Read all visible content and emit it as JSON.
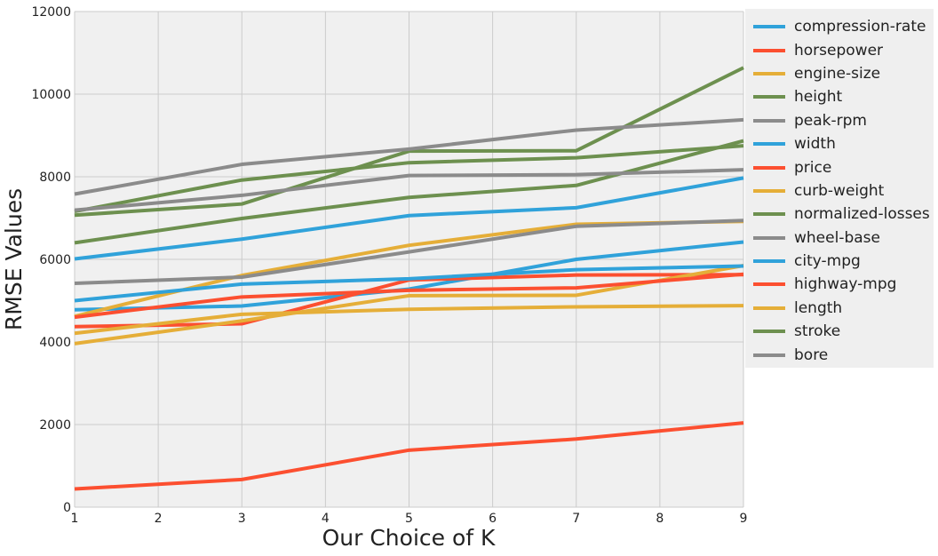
{
  "chart_data": {
    "type": "line",
    "xlabel": "Our Choice of K",
    "ylabel": "RMSE Values",
    "xlim": [
      1,
      9
    ],
    "ylim": [
      0,
      12000
    ],
    "xticks": [
      1,
      2,
      3,
      4,
      5,
      6,
      7,
      8,
      9
    ],
    "yticks": [
      0,
      2000,
      4000,
      6000,
      8000,
      10000,
      12000
    ],
    "x": [
      1,
      3,
      5,
      7,
      9
    ],
    "grid": true,
    "legend_position": "right, outside plot",
    "colors": {
      "blue": "#30a2da",
      "red": "#fc4f30",
      "yellow": "#e5ae38",
      "green": "#6d904f",
      "gray": "#8b8b8b"
    },
    "series": [
      {
        "name": "compression-rate",
        "color": "#30a2da",
        "values": [
          4780,
          4870,
          5280,
          6000,
          6420
        ]
      },
      {
        "name": "horsepower",
        "color": "#fc4f30",
        "values": [
          4370,
          4440,
          5500,
          5620,
          5630
        ]
      },
      {
        "name": "engine-size",
        "color": "#e5ae38",
        "values": [
          3960,
          4510,
          5120,
          5130,
          5850
        ]
      },
      {
        "name": "height",
        "color": "#6d904f",
        "values": [
          7070,
          7340,
          8620,
          8630,
          10640
        ]
      },
      {
        "name": "peak-rpm",
        "color": "#8b8b8b",
        "values": [
          7580,
          8300,
          8670,
          9130,
          9380
        ]
      },
      {
        "name": "width",
        "color": "#30a2da",
        "values": [
          6010,
          6490,
          7060,
          7250,
          7970
        ]
      },
      {
        "name": "price",
        "color": "#fc4f30",
        "values": [
          440,
          670,
          1380,
          1650,
          2040
        ]
      },
      {
        "name": "curb-weight",
        "color": "#e5ae38",
        "values": [
          4620,
          5610,
          6340,
          6850,
          6920
        ]
      },
      {
        "name": "normalized-losses",
        "color": "#6d904f",
        "values": [
          7160,
          7920,
          8340,
          8460,
          8750
        ]
      },
      {
        "name": "wheel-base",
        "color": "#8b8b8b",
        "values": [
          5420,
          5570,
          6180,
          6800,
          6940
        ]
      },
      {
        "name": "city-mpg",
        "color": "#30a2da",
        "values": [
          5000,
          5400,
          5530,
          5750,
          5840
        ]
      },
      {
        "name": "highway-mpg",
        "color": "#fc4f30",
        "values": [
          4600,
          5090,
          5250,
          5310,
          5640
        ]
      },
      {
        "name": "length",
        "color": "#e5ae38",
        "values": [
          4210,
          4670,
          4790,
          4850,
          4880
        ]
      },
      {
        "name": "stroke",
        "color": "#6d904f",
        "values": [
          6400,
          6990,
          7500,
          7790,
          8870
        ]
      },
      {
        "name": "bore",
        "color": "#8b8b8b",
        "values": [
          7190,
          7550,
          8030,
          8050,
          8170
        ]
      }
    ]
  }
}
